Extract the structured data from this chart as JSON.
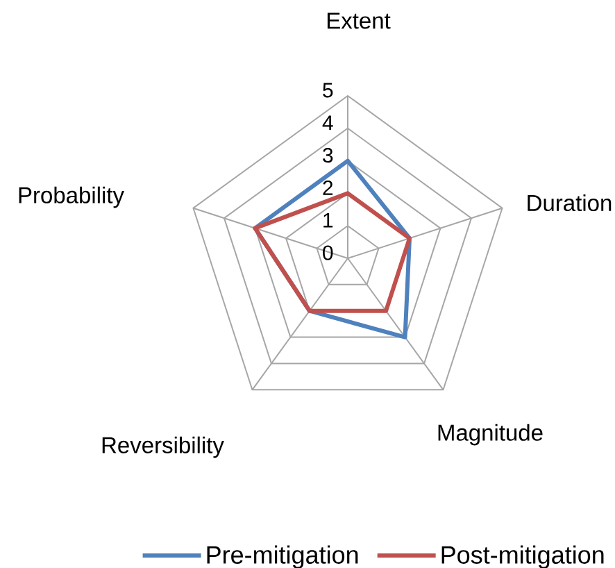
{
  "chart_data": {
    "type": "radar",
    "categories": [
      "Extent",
      "Duration",
      "Magnitude",
      "Reversibility",
      "Probability"
    ],
    "series": [
      {
        "name": "Pre-mitigation",
        "color": "#4f81bd",
        "values": [
          3,
          2,
          3,
          2,
          3
        ]
      },
      {
        "name": "Post-mitigation",
        "color": "#c0504d",
        "values": [
          2,
          2,
          2,
          2,
          3
        ]
      }
    ],
    "ylim": [
      0,
      5
    ],
    "yticks": [
      0,
      1,
      2,
      3,
      4,
      5
    ],
    "grid": true,
    "legend": "bottom"
  }
}
